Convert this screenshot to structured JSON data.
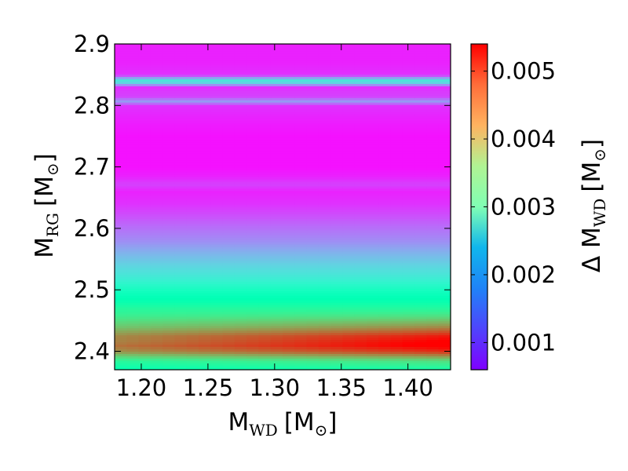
{
  "chart_data": {
    "type": "heatmap",
    "title": "",
    "xlabel": {
      "main": "M",
      "sub": "WD",
      "unit": "[M",
      "unit_sub": "⊙",
      "unit_close": "]"
    },
    "ylabel": {
      "main": "M",
      "sub": "RG",
      "unit": "[M",
      "unit_sub": "⊙",
      "unit_close": "]"
    },
    "colorbar_label": {
      "prefix": "Δ M",
      "sub": "WD",
      "unit": "[M",
      "unit_sub": "⊙",
      "unit_close": "]"
    },
    "xlim": [
      1.18,
      1.432
    ],
    "ylim": [
      2.37,
      2.9
    ],
    "x_ticks": [
      1.2,
      1.25,
      1.3,
      1.35,
      1.4
    ],
    "x_tick_labels": [
      "1.20",
      "1.25",
      "1.30",
      "1.35",
      "1.40"
    ],
    "y_ticks": [
      2.4,
      2.5,
      2.6,
      2.7,
      2.8,
      2.9
    ],
    "y_tick_labels": [
      "2.4",
      "2.5",
      "2.6",
      "2.7",
      "2.8",
      "2.9"
    ],
    "colorbar_range": [
      0.0006,
      0.0054
    ],
    "colorbar_ticks": [
      0.001,
      0.002,
      0.003,
      0.004,
      0.005
    ],
    "colorbar_tick_labels": [
      "0.001",
      "0.002",
      "0.003",
      "0.004",
      "0.005"
    ],
    "colormap": "rainbow",
    "grid": false,
    "profile": {
      "description_free": true,
      "m_rg": [
        2.37,
        2.385,
        2.4,
        2.41,
        2.425,
        2.44,
        2.46,
        2.48,
        2.5,
        2.52,
        2.54,
        2.56,
        2.58,
        2.6,
        2.62,
        2.64,
        2.66,
        2.672,
        2.685,
        2.7,
        2.72,
        2.75,
        2.78,
        2.8,
        2.807,
        2.815,
        2.83,
        2.84,
        2.85,
        2.87,
        2.9
      ],
      "delta_m_wd": [
        0.0031,
        0.0036,
        0.0048,
        0.0051,
        0.0049,
        0.0043,
        0.0036,
        0.0031,
        0.0028,
        0.0024,
        0.0021,
        0.0018,
        0.0015,
        0.0013,
        0.0011,
        0.0009,
        0.0008,
        0.001,
        0.0008,
        0.0007,
        0.0007,
        0.0007,
        0.0008,
        0.0009,
        0.0016,
        0.001,
        0.0009,
        0.0025,
        0.0009,
        0.0008,
        0.0008
      ],
      "x_gradient_low": [
        0.0031,
        0.0035,
        0.0044,
        0.0046,
        0.0045,
        0.0041
      ],
      "x_gradient_high": [
        0.0031,
        0.0037,
        0.0052,
        0.0054,
        0.0053,
        0.0045
      ]
    }
  }
}
